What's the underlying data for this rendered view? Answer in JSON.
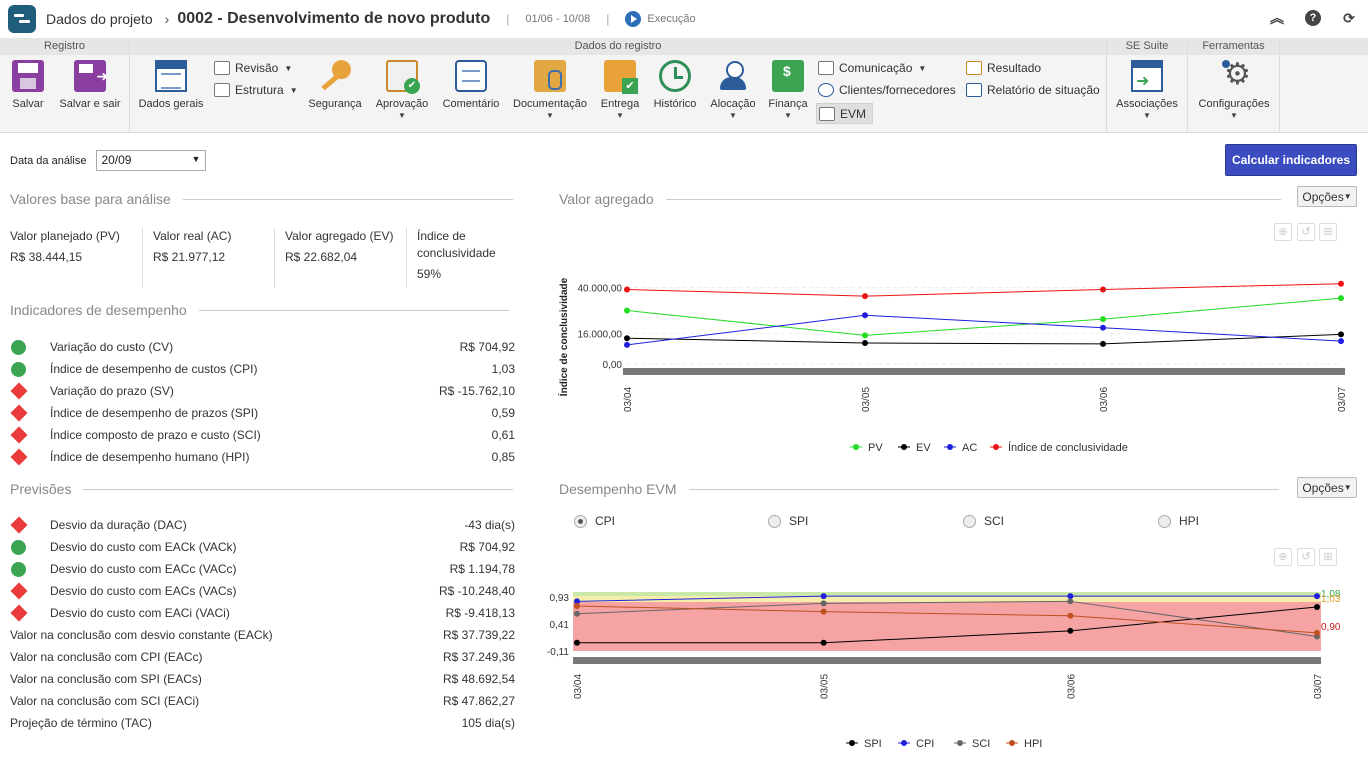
{
  "header": {
    "breadcrumb": "Dados do projeto",
    "project_title": "0002 - Desenvolvimento de novo produto",
    "dates": "01/06 - 10/08",
    "status": "Execução"
  },
  "ribbon": {
    "groups": {
      "registro": "Registro",
      "dados_registro": "Dados do registro",
      "se_suite": "SE Suite",
      "ferramentas": "Ferramentas"
    },
    "buttons": {
      "salvar": "Salvar",
      "salvar_sair": "Salvar e sair",
      "dados_gerais": "Dados gerais",
      "revisao": "Revisão",
      "estrutura": "Estrutura",
      "seguranca": "Segurança",
      "aprovacao": "Aprovação",
      "comentario": "Comentário",
      "documentacao": "Documentação",
      "entrega": "Entrega",
      "historico": "Histórico",
      "alocacao": "Alocação",
      "financa": "Finança",
      "comunicacao": "Comunicação",
      "clientes": "Clientes/fornecedores",
      "evm": "EVM",
      "resultado": "Resultado",
      "relatorio": "Relatório de situação",
      "associacoes": "Associações",
      "configuracoes": "Configurações"
    }
  },
  "analysis": {
    "label": "Data da análise",
    "date": "20/09",
    "calc_button": "Calcular indicadores"
  },
  "base_values": {
    "title": "Valores base para análise",
    "items": [
      {
        "label": "Valor planejado (PV)",
        "value": "R$ 38.444,15"
      },
      {
        "label": "Valor real (AC)",
        "value": "R$ 21.977,12"
      },
      {
        "label": "Valor agregado (EV)",
        "value": "R$ 22.682,04"
      },
      {
        "label": "Índice de conclusividade",
        "value": "59%"
      }
    ]
  },
  "performance": {
    "title": "Indicadores de desempenho",
    "items": [
      {
        "status": "good",
        "label": "Variação do custo (CV)",
        "value": "R$ 704,92"
      },
      {
        "status": "good",
        "label": "Índice de desempenho de custos (CPI)",
        "value": "1,03"
      },
      {
        "status": "bad",
        "label": "Variação do prazo (SV)",
        "value": "R$ -15.762,10"
      },
      {
        "status": "bad",
        "label": "Índice de desempenho de prazos (SPI)",
        "value": "0,59"
      },
      {
        "status": "bad",
        "label": "Índice composto de prazo e custo (SCI)",
        "value": "0,61"
      },
      {
        "status": "bad",
        "label": "Índice de desempenho humano (HPI)",
        "value": "0,85"
      }
    ]
  },
  "forecasts": {
    "title": "Previsões",
    "items": [
      {
        "status": "bad",
        "label": "Desvio da duração (DAC)",
        "value": "-43 dia(s)"
      },
      {
        "status": "good",
        "label": "Desvio do custo com EACk (VACk)",
        "value": "R$ 704,92"
      },
      {
        "status": "good",
        "label": "Desvio do custo com EACc (VACc)",
        "value": "R$ 1.194,78"
      },
      {
        "status": "bad",
        "label": "Desvio do custo com EACs (VACs)",
        "value": "R$ -10.248,40"
      },
      {
        "status": "bad",
        "label": "Desvio do custo com EACi (VACi)",
        "value": "R$ -9.418,13"
      },
      {
        "status": "none",
        "label": "Valor na conclusão com desvio constante (EACk)",
        "value": "R$ 37.739,22"
      },
      {
        "status": "none",
        "label": "Valor na conclusão com CPI (EACc)",
        "value": "R$ 37.249,36"
      },
      {
        "status": "none",
        "label": "Valor na conclusão com SPI (EACs)",
        "value": "R$ 48.692,54"
      },
      {
        "status": "none",
        "label": "Valor na conclusão com SCI (EACi)",
        "value": "R$ 47.862,27"
      },
      {
        "status": "none",
        "label": "Projeção de término (TAC)",
        "value": "105 dia(s)"
      }
    ]
  },
  "charts": {
    "earned_value_title": "Valor agregado",
    "evm_title": "Desempenho EVM",
    "options_label": "Opções",
    "radio": [
      {
        "label": "CPI",
        "selected": true
      },
      {
        "label": "SPI",
        "selected": false
      },
      {
        "label": "SCI",
        "selected": false
      },
      {
        "label": "HPI",
        "selected": false
      }
    ]
  },
  "chart_data": [
    {
      "type": "line",
      "title": "Valor agregado",
      "ylabel": "Índice de conclusividade",
      "x": [
        "03/04",
        "03/05",
        "03/06",
        "03/07"
      ],
      "yticks": [
        "0,00",
        "16.000,00",
        "40.000,00"
      ],
      "ylim": [
        0,
        40000
      ],
      "legend_position": "bottom",
      "series": [
        {
          "name": "PV",
          "color": "#22dd22",
          "values": [
            28000,
            15000,
            23500,
            34500
          ]
        },
        {
          "name": "EV",
          "color": "#000000",
          "values": [
            13500,
            11000,
            10500,
            15500
          ]
        },
        {
          "name": "AC",
          "color": "#1f1fdd",
          "values": [
            10000,
            25500,
            19000,
            12000
          ]
        },
        {
          "name": "Índice de conclusividade",
          "color": "#ee1111",
          "values": [
            39000,
            35500,
            39000,
            42000
          ]
        }
      ]
    },
    {
      "type": "line",
      "title": "Desempenho EVM",
      "x": [
        "03/04",
        "03/05",
        "03/06",
        "03/07"
      ],
      "yticks": [
        "-0,11",
        "0,41",
        "0,93"
      ],
      "ylim": [
        -0.11,
        1.03
      ],
      "end_labels": [
        "1,08",
        "1,03",
        "0,90"
      ],
      "legend_position": "bottom",
      "series": [
        {
          "name": "SPI",
          "color": "#000000",
          "values": [
            0.05,
            0.05,
            0.28,
            0.74
          ]
        },
        {
          "name": "CPI",
          "color": "#1f1fdd",
          "values": [
            0.85,
            0.95,
            0.95,
            0.95
          ]
        },
        {
          "name": "SCI",
          "color": "#666666",
          "values": [
            0.61,
            0.81,
            0.85,
            0.17
          ]
        },
        {
          "name": "HPI",
          "color": "#c05020",
          "values": [
            0.76,
            0.65,
            0.57,
            0.24
          ]
        }
      ]
    }
  ]
}
